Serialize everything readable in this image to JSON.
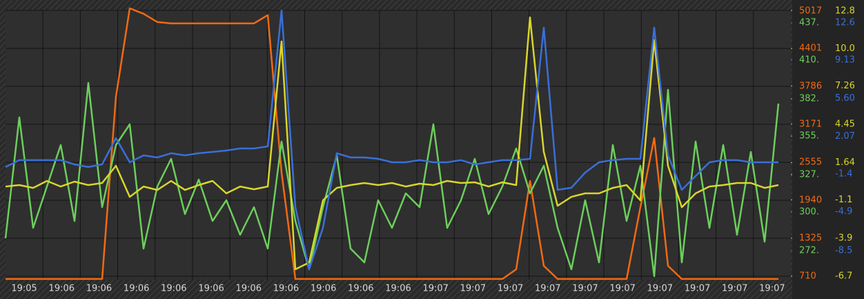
{
  "chart_data": {
    "type": "line",
    "x_labels": [
      "19:05",
      "19:06",
      "19:06",
      "19:06",
      "19:06",
      "19:06",
      "19:06",
      "19:06",
      "19:06",
      "19:06",
      "19:06",
      "19:07",
      "19:07",
      "19:07",
      "19:07",
      "19:07",
      "19:07",
      "19:07",
      "19:07",
      "19:07",
      "19:07"
    ],
    "grid": true,
    "series": [
      {
        "name": "orange",
        "color": "#f26a12",
        "column": 0,
        "ylim": [
          654,
          5017
        ],
        "yticks": [
          710,
          1325,
          1940,
          2555,
          3171,
          3786,
          4401,
          5017
        ],
        "values": [
          665,
          665,
          665,
          665,
          665,
          665,
          665,
          665,
          3619,
          5050,
          4962,
          4828,
          4806,
          4806,
          4806,
          4806,
          4806,
          4806,
          4806,
          4940,
          2389,
          665,
          665,
          665,
          665,
          665,
          665,
          665,
          665,
          665,
          665,
          665,
          665,
          665,
          665,
          665,
          665,
          822,
          2254,
          878,
          665,
          665,
          665,
          665,
          665,
          665,
          1829,
          2948,
          878,
          665,
          665,
          665,
          665,
          665,
          665,
          665,
          665
        ]
      },
      {
        "name": "green",
        "color": "#6ccf5c",
        "column": 0,
        "ylim": [
          251,
          446
        ],
        "yticks": [
          {
            "value": 272,
            "label": "272."
          },
          {
            "value": 300,
            "label": "300."
          },
          {
            "value": 327,
            "label": "327."
          },
          {
            "value": 355,
            "label": "355."
          },
          {
            "value": 382,
            "label": "382."
          },
          {
            "value": 410,
            "label": "410."
          },
          {
            "value": 437,
            "label": "437."
          }
        ],
        "values": [
          281,
          368.5,
          288.5,
          318.5,
          348.5,
          293.5,
          393.5,
          303.5,
          348.5,
          363.5,
          273.5,
          318.5,
          338.5,
          298.5,
          323.5,
          293.5,
          308.5,
          283.5,
          303.5,
          273.5,
          351,
          293.5,
          258.5,
          303.5,
          341,
          273.5,
          263.5,
          308.5,
          288.5,
          313.5,
          303.5,
          363.5,
          288.5,
          308.5,
          338.5,
          298.5,
          318.5,
          346,
          313.5,
          333.5,
          288.5,
          258.5,
          308.5,
          263.5,
          348.5,
          293.5,
          333.5,
          253.5,
          388.5,
          263.5,
          351,
          288.5,
          348.5,
          283.5,
          343.5,
          278.5,
          378.5
        ]
      },
      {
        "name": "yellow",
        "color": "#d9d62b",
        "column": 1,
        "ylim": [
          -6.95,
          12.8
        ],
        "yticks": [
          -6.7,
          -3.9,
          -1.1,
          1.64,
          4.45,
          7.26,
          {
            "value": 10,
            "label": "10.0"
          },
          12.8
        ],
        "values": [
          -0.12,
          -0.01,
          -0.22,
          0.29,
          -0.12,
          0.24,
          -0.01,
          0.14,
          1.4,
          -0.88,
          -0.12,
          -0.37,
          0.29,
          -0.37,
          -0.01,
          0.29,
          -0.62,
          -0.12,
          -0.32,
          -0.12,
          10.52,
          -6.19,
          -5.69,
          -1.13,
          -0.22,
          -0.01,
          0.14,
          -0.01,
          0.14,
          -0.12,
          0.09,
          -0.01,
          0.29,
          0.14,
          0.19,
          -0.12,
          0.19,
          -0.01,
          12.29,
          2.42,
          -1.53,
          -0.88,
          -0.62,
          -0.62,
          -0.22,
          -0.01,
          -1.13,
          10.62,
          1.4,
          -1.64,
          -0.62,
          -0.12,
          -0.01,
          0.14,
          0.14,
          -0.22,
          -0.01
        ]
      },
      {
        "name": "blue",
        "color": "#3a6fd8",
        "column": 1,
        "ylim": [
          -11.19,
          13.75
        ],
        "yticks": [
          -8.5,
          -4.9,
          -1.4,
          2.07,
          {
            "value": 5.6,
            "label": "5.60"
          },
          9.13,
          12.6
        ],
        "values": [
          -0.76,
          -0.12,
          -0.12,
          -0.12,
          -0.12,
          -0.51,
          -0.76,
          -0.51,
          1.92,
          -0.32,
          0.32,
          0.13,
          0.52,
          0.32,
          0.52,
          0.64,
          0.77,
          0.96,
          0.96,
          1.15,
          13.75,
          -4.47,
          -10.23,
          -6.39,
          0.52,
          0.13,
          0.13,
          0,
          -0.32,
          -0.32,
          -0.12,
          -0.32,
          -0.32,
          -0.12,
          -0.51,
          -0.32,
          -0.12,
          -0.12,
          0,
          12.15,
          -2.87,
          -2.68,
          -1.27,
          -0.32,
          -0.12,
          0,
          0,
          12.15,
          0.32,
          -2.87,
          -1.59,
          -0.32,
          -0.12,
          -0.12,
          -0.32,
          -0.32,
          -0.32
        ]
      }
    ]
  }
}
